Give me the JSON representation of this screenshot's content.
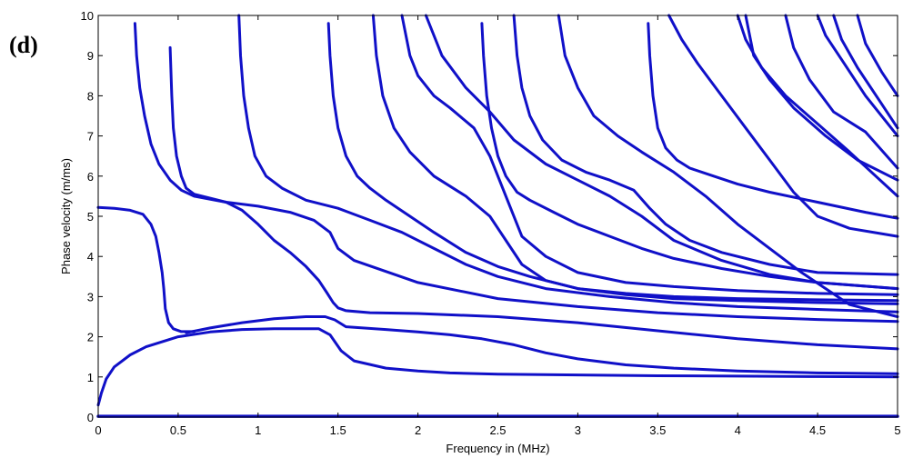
{
  "panel_label": "(d)",
  "chart_data": {
    "type": "scatter",
    "title": "",
    "xlabel": "Frequency in (MHz)",
    "ylabel": "Phase velocity (m/ms)",
    "xlim": [
      0,
      5
    ],
    "ylim": [
      0,
      10
    ],
    "xticks": [
      0,
      0.5,
      1,
      1.5,
      2,
      2.5,
      3,
      3.5,
      4,
      4.5,
      5
    ],
    "xtick_labels": [
      "0",
      "0.5",
      "1",
      "1.5",
      "2",
      "2.5",
      "3",
      "3.5",
      "4",
      "4.5",
      "5"
    ],
    "yticks": [
      0,
      1,
      2,
      3,
      4,
      5,
      6,
      7,
      8,
      9,
      10
    ],
    "ytick_labels": [
      "0",
      "1",
      "2",
      "3",
      "4",
      "5",
      "6",
      "7",
      "8",
      "9",
      "10"
    ],
    "grid": false,
    "marker_color": "#1010c8",
    "series": [
      {
        "x": [
          0,
          5
        ],
        "y": [
          0.02,
          0.02
        ]
      },
      {
        "x": [
          0,
          0.02,
          0.05,
          0.1,
          0.2,
          0.3,
          0.5,
          0.7,
          0.9,
          1.1,
          1.3,
          1.38,
          1.45,
          1.52,
          1.6,
          1.8,
          2.0,
          2.2,
          2.5,
          3.0,
          3.5,
          4.0,
          4.5,
          5.0
        ],
        "y": [
          0.3,
          0.6,
          0.95,
          1.25,
          1.55,
          1.75,
          2.0,
          2.12,
          2.18,
          2.2,
          2.2,
          2.2,
          2.05,
          1.65,
          1.4,
          1.22,
          1.15,
          1.1,
          1.07,
          1.05,
          1.03,
          1.02,
          1.01,
          1.0
        ]
      },
      {
        "x": [
          0.55,
          0.7,
          0.9,
          1.1,
          1.3,
          1.42,
          1.48,
          1.55,
          1.8,
          2.0,
          2.2,
          2.4,
          2.6,
          2.8,
          3.0,
          3.3,
          3.6,
          4.0,
          4.5,
          5.0
        ],
        "y": [
          2.1,
          2.22,
          2.35,
          2.45,
          2.5,
          2.5,
          2.42,
          2.25,
          2.18,
          2.12,
          2.05,
          1.95,
          1.8,
          1.6,
          1.45,
          1.3,
          1.22,
          1.15,
          1.1,
          1.08
        ]
      },
      {
        "x": [
          0,
          0.1,
          0.2,
          0.28,
          0.33,
          0.36,
          0.38,
          0.4,
          0.41,
          0.42,
          0.44,
          0.47,
          0.52,
          0.6
        ],
        "y": [
          5.22,
          5.2,
          5.15,
          5.05,
          4.8,
          4.5,
          4.1,
          3.6,
          3.2,
          2.7,
          2.35,
          2.2,
          2.13,
          2.13
        ]
      },
      {
        "x": [
          0.23,
          0.24,
          0.26,
          0.29,
          0.33,
          0.38,
          0.45,
          0.52,
          0.6,
          0.8,
          1.0,
          1.2,
          1.35,
          1.45,
          1.5,
          1.6,
          2.0,
          2.5,
          3.0,
          3.5,
          4.0,
          4.5,
          5.0
        ],
        "y": [
          9.8,
          9.0,
          8.2,
          7.5,
          6.8,
          6.3,
          5.9,
          5.65,
          5.5,
          5.35,
          5.25,
          5.1,
          4.9,
          4.6,
          4.2,
          3.9,
          3.35,
          2.95,
          2.75,
          2.6,
          2.5,
          2.43,
          2.38
        ]
      },
      {
        "x": [
          0.45,
          0.46,
          0.47,
          0.49,
          0.52,
          0.55,
          0.6,
          0.7,
          0.8,
          0.9,
          1.0,
          1.1,
          1.2,
          1.3,
          1.38,
          1.43,
          1.47,
          1.5,
          1.55,
          1.7,
          2.0,
          2.5,
          3.0,
          3.5,
          4.0,
          4.5,
          5.0
        ],
        "y": [
          9.2,
          8.0,
          7.2,
          6.5,
          6.0,
          5.7,
          5.55,
          5.45,
          5.35,
          5.15,
          4.8,
          4.4,
          4.1,
          3.75,
          3.4,
          3.1,
          2.85,
          2.72,
          2.65,
          2.6,
          2.58,
          2.5,
          2.35,
          2.15,
          1.95,
          1.8,
          1.7
        ]
      },
      {
        "x": [
          0.88,
          0.89,
          0.91,
          0.94,
          0.98,
          1.05,
          1.15,
          1.3,
          1.5,
          1.7,
          1.9,
          2.1,
          2.3,
          2.5,
          2.8,
          3.2,
          3.6,
          4.0,
          4.5,
          5.0
        ],
        "y": [
          10.0,
          9.0,
          8.0,
          7.2,
          6.5,
          6.0,
          5.7,
          5.4,
          5.2,
          4.9,
          4.6,
          4.2,
          3.8,
          3.5,
          3.2,
          3.0,
          2.85,
          2.75,
          2.68,
          2.62
        ]
      },
      {
        "x": [
          1.44,
          1.45,
          1.47,
          1.5,
          1.55,
          1.62,
          1.7,
          1.8,
          1.95,
          2.1,
          2.3,
          2.5,
          2.7,
          3.0,
          3.3,
          3.6,
          4.0,
          4.5,
          5.0
        ],
        "y": [
          9.8,
          9.0,
          8.0,
          7.2,
          6.5,
          6.0,
          5.7,
          5.4,
          5.0,
          4.6,
          4.1,
          3.75,
          3.5,
          3.2,
          3.05,
          2.95,
          2.9,
          2.85,
          2.82
        ]
      },
      {
        "x": [
          1.72,
          1.74,
          1.78,
          1.85,
          1.95,
          2.1,
          2.3,
          2.45,
          2.55,
          2.65,
          2.8,
          3.0,
          3.3,
          3.6,
          4.0,
          4.5,
          5.0
        ],
        "y": [
          10.0,
          9.0,
          8.0,
          7.2,
          6.6,
          6.0,
          5.5,
          5.0,
          4.4,
          3.8,
          3.4,
          3.2,
          3.08,
          3.0,
          2.95,
          2.92,
          2.9
        ]
      },
      {
        "x": [
          1.9,
          1.95,
          2.0,
          2.1,
          2.2,
          2.35,
          2.45,
          2.55,
          2.65,
          2.8,
          3.0,
          3.3,
          3.6,
          4.0,
          4.5,
          5.0
        ],
        "y": [
          10.0,
          9.0,
          8.5,
          8.0,
          7.7,
          7.2,
          6.5,
          5.5,
          4.5,
          4.0,
          3.6,
          3.35,
          3.25,
          3.15,
          3.08,
          3.05
        ]
      },
      {
        "x": [
          2.05,
          2.15,
          2.3,
          2.45,
          2.6,
          2.8,
          3.0,
          3.2,
          3.4,
          3.6,
          3.9,
          4.2,
          4.5,
          5.0
        ],
        "y": [
          10.0,
          9.0,
          8.2,
          7.6,
          6.9,
          6.3,
          5.9,
          5.5,
          5.0,
          4.4,
          3.9,
          3.55,
          3.35,
          3.2
        ]
      },
      {
        "x": [
          2.4,
          2.41,
          2.43,
          2.46,
          2.5,
          2.55,
          2.62,
          2.7,
          2.85,
          3.0,
          3.2,
          3.4,
          3.6,
          3.9,
          4.2,
          4.5,
          5.0
        ],
        "y": [
          9.8,
          9.0,
          8.0,
          7.2,
          6.5,
          6.0,
          5.6,
          5.4,
          5.1,
          4.8,
          4.5,
          4.2,
          3.95,
          3.7,
          3.5,
          3.35,
          3.2
        ]
      },
      {
        "x": [
          2.6,
          2.62,
          2.65,
          2.7,
          2.78,
          2.9,
          3.05,
          3.2,
          3.35,
          3.45,
          3.55,
          3.7,
          3.9,
          4.2,
          4.5,
          5.0
        ],
        "y": [
          10.0,
          9.0,
          8.2,
          7.5,
          6.9,
          6.4,
          6.1,
          5.9,
          5.65,
          5.2,
          4.8,
          4.4,
          4.1,
          3.8,
          3.6,
          3.55
        ]
      },
      {
        "x": [
          2.88,
          2.92,
          3.0,
          3.1,
          3.25,
          3.4,
          3.6,
          3.8,
          4.0,
          4.2,
          4.4,
          4.7,
          5.0
        ],
        "y": [
          10.0,
          9.0,
          8.2,
          7.5,
          7.0,
          6.6,
          6.1,
          5.5,
          4.8,
          4.2,
          3.6,
          2.8,
          2.5
        ]
      },
      {
        "x": [
          3.44,
          3.45,
          3.47,
          3.5,
          3.55,
          3.62,
          3.7,
          3.85,
          4.0,
          4.2,
          4.5,
          4.8,
          5.0
        ],
        "y": [
          9.8,
          9.0,
          8.0,
          7.2,
          6.7,
          6.4,
          6.2,
          6.0,
          5.8,
          5.6,
          5.35,
          5.1,
          4.95
        ]
      },
      {
        "x": [
          3.57,
          3.65,
          3.75,
          3.9,
          4.05,
          4.2,
          4.35,
          4.5,
          4.7,
          5.0
        ],
        "y": [
          10.0,
          9.4,
          8.8,
          8.0,
          7.2,
          6.4,
          5.6,
          5.0,
          4.7,
          4.5
        ]
      },
      {
        "x": [
          4.0,
          4.05,
          4.15,
          4.3,
          4.5,
          4.7,
          5.0
        ],
        "y": [
          10.0,
          9.4,
          8.7,
          8.0,
          7.3,
          6.6,
          5.5
        ]
      },
      {
        "x": [
          4.05,
          4.1,
          4.2,
          4.35,
          4.55,
          4.75,
          5.0
        ],
        "y": [
          10.0,
          9.0,
          8.4,
          7.7,
          7.0,
          6.4,
          5.9
        ]
      },
      {
        "x": [
          4.3,
          4.35,
          4.45,
          4.6,
          4.8,
          5.0
        ],
        "y": [
          10.0,
          9.2,
          8.4,
          7.6,
          7.1,
          6.2
        ]
      },
      {
        "x": [
          4.5,
          4.55,
          4.65,
          4.8,
          5.0
        ],
        "y": [
          10.0,
          9.5,
          8.9,
          8.0,
          7.0
        ]
      },
      {
        "x": [
          4.6,
          4.65,
          4.75,
          4.9,
          5.0
        ],
        "y": [
          10.0,
          9.4,
          8.7,
          7.8,
          7.2
        ]
      },
      {
        "x": [
          4.75,
          4.8,
          4.9,
          5.0
        ],
        "y": [
          10.0,
          9.3,
          8.6,
          8.0
        ]
      }
    ]
  }
}
